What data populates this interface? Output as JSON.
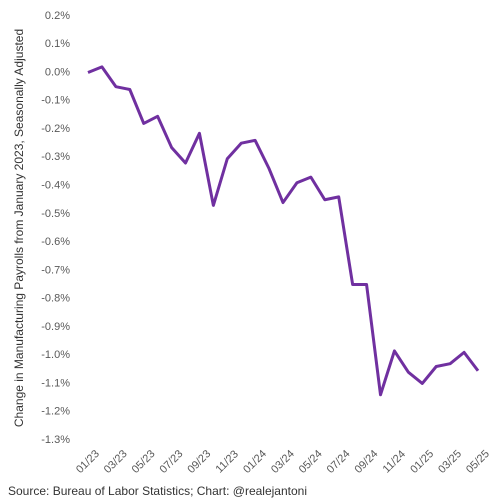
{
  "chart_data": {
    "type": "line",
    "ylabel": "Change in Manufacturing Payrolls from January 2023, Seasonally Adjusted",
    "source": "Source: Bureau of Labor Statistics; Chart: @realejantoni",
    "categories": [
      "01/23",
      null,
      "03/23",
      null,
      "05/23",
      null,
      "07/23",
      null,
      "09/23",
      null,
      "11/23",
      null,
      "01/24",
      null,
      "03/24",
      null,
      "05/24",
      null,
      "07/24",
      null,
      "09/24",
      null,
      "11/24",
      null,
      "01/25",
      null,
      "03/25",
      null,
      "05/25"
    ],
    "series": [
      {
        "name": "Manufacturing payrolls",
        "color": "#7030a0",
        "values": [
          0.0,
          0.02,
          -0.05,
          -0.06,
          -0.18,
          -0.155,
          -0.265,
          -0.32,
          -0.215,
          -0.47,
          -0.305,
          -0.25,
          -0.24,
          -0.34,
          -0.46,
          -0.39,
          -0.37,
          -0.45,
          -0.44,
          -0.75,
          -0.75,
          -1.14,
          -0.985,
          -1.06,
          -1.1,
          -1.04,
          -1.03,
          -0.99,
          -1.055
        ]
      }
    ],
    "ylim": [
      -1.3,
      0.2
    ],
    "yticks": [
      {
        "value": 0.2,
        "label": "0.2%"
      },
      {
        "value": 0.1,
        "label": "0.1%"
      },
      {
        "value": 0.0,
        "label": "0.0%"
      },
      {
        "value": -0.1,
        "label": "-0.1%"
      },
      {
        "value": -0.2,
        "label": "-0.2%"
      },
      {
        "value": -0.3,
        "label": "-0.3%"
      },
      {
        "value": -0.4,
        "label": "-0.4%"
      },
      {
        "value": -0.5,
        "label": "-0.5%"
      },
      {
        "value": -0.6,
        "label": "-0.6%"
      },
      {
        "value": -0.7,
        "label": "-0.7%"
      },
      {
        "value": -0.8,
        "label": "-0.8%"
      },
      {
        "value": -0.9,
        "label": "-0.9%"
      },
      {
        "value": -1.0,
        "label": "-1.0%"
      },
      {
        "value": -1.1,
        "label": "-1.1%"
      },
      {
        "value": -1.2,
        "label": "-1.2%"
      },
      {
        "value": -1.3,
        "label": "-1.3%"
      }
    ],
    "grid": false
  }
}
